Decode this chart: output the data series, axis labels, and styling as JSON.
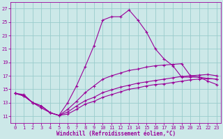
{
  "xlabel": "Windchill (Refroidissement éolien,°C)",
  "xlim": [
    -0.5,
    23.5
  ],
  "ylim": [
    10.0,
    28.0
  ],
  "yticks": [
    11,
    13,
    15,
    17,
    19,
    21,
    23,
    25,
    27
  ],
  "xticks": [
    0,
    1,
    2,
    3,
    4,
    5,
    6,
    7,
    8,
    9,
    10,
    11,
    12,
    13,
    14,
    15,
    16,
    17,
    18,
    19,
    20,
    21,
    22,
    23
  ],
  "bg_color": "#cce8e8",
  "grid_color": "#99cccc",
  "line_color": "#990099",
  "line1_x": [
    0,
    1,
    2,
    3,
    4,
    5,
    6,
    7,
    8,
    9,
    10,
    11,
    12,
    13,
    14,
    15,
    16,
    17,
    18,
    19,
    20,
    21,
    22,
    23
  ],
  "line1_y": [
    14.4,
    14.2,
    13.0,
    12.5,
    11.5,
    11.1,
    13.0,
    15.5,
    18.4,
    21.5,
    25.3,
    25.8,
    25.8,
    26.8,
    25.3,
    23.5,
    21.0,
    19.5,
    18.5,
    16.8,
    16.8,
    16.8,
    16.2,
    15.7
  ],
  "line2_x": [
    0,
    1,
    2,
    3,
    4,
    5,
    6,
    7,
    8,
    9,
    10,
    11,
    12,
    13,
    14,
    15,
    16,
    17,
    18,
    19,
    20,
    21,
    22,
    23
  ],
  "line2_y": [
    14.4,
    14.0,
    13.0,
    12.2,
    11.5,
    11.1,
    11.3,
    12.0,
    12.8,
    13.2,
    13.8,
    14.2,
    14.6,
    15.0,
    15.2,
    15.5,
    15.7,
    15.8,
    16.0,
    16.2,
    16.4,
    16.5,
    16.6,
    16.5
  ],
  "line3_x": [
    0,
    1,
    2,
    3,
    4,
    5,
    6,
    7,
    8,
    9,
    10,
    11,
    12,
    13,
    14,
    15,
    16,
    17,
    18,
    19,
    20,
    21,
    22,
    23
  ],
  "line3_y": [
    14.4,
    14.0,
    13.0,
    12.5,
    11.5,
    11.1,
    11.6,
    12.5,
    13.3,
    13.8,
    14.5,
    14.9,
    15.3,
    15.6,
    15.9,
    16.1,
    16.3,
    16.5,
    16.7,
    16.9,
    17.0,
    17.1,
    17.2,
    17.0
  ],
  "line4_x": [
    0,
    1,
    2,
    3,
    4,
    5,
    6,
    7,
    8,
    9,
    10,
    11,
    12,
    13,
    14,
    15,
    16,
    17,
    18,
    19,
    20,
    21,
    22,
    23
  ],
  "line4_y": [
    14.4,
    14.0,
    13.0,
    12.5,
    11.5,
    11.1,
    12.0,
    13.2,
    14.5,
    15.5,
    16.5,
    17.0,
    17.4,
    17.8,
    18.0,
    18.3,
    18.5,
    18.6,
    18.7,
    18.8,
    17.0,
    16.8,
    16.6,
    16.5
  ]
}
